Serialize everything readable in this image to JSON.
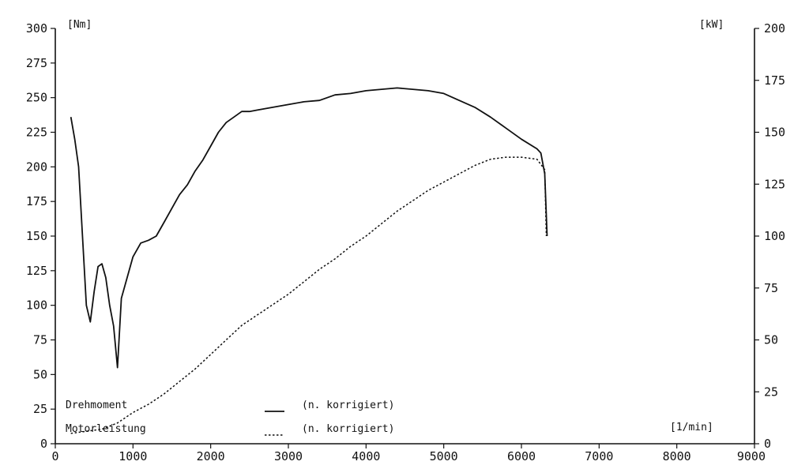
{
  "chart_data": {
    "type": "line",
    "x_axis": {
      "unit_label": "[1/min]",
      "range": [
        0,
        9000
      ],
      "ticks": [
        0,
        1000,
        2000,
        3000,
        4000,
        5000,
        6000,
        7000,
        8000,
        9000
      ]
    },
    "y_left": {
      "unit_label": "[Nm]",
      "range": [
        0,
        300
      ],
      "ticks": [
        0,
        25,
        50,
        75,
        100,
        125,
        150,
        175,
        200,
        225,
        250,
        275,
        300
      ]
    },
    "y_right": {
      "unit_label": "[kW]",
      "range": [
        0,
        200
      ],
      "ticks": [
        0,
        25,
        50,
        75,
        100,
        125,
        150,
        175,
        200
      ]
    },
    "grid": false,
    "legend_position": "bottom-left",
    "series": [
      {
        "name": "Drehmoment",
        "note": "(n. korrigiert)",
        "axis": "left",
        "style": "solid",
        "x": [
          200,
          250,
          300,
          350,
          400,
          450,
          500,
          550,
          600,
          650,
          700,
          750,
          800,
          850,
          900,
          1000,
          1100,
          1200,
          1300,
          1400,
          1500,
          1600,
          1700,
          1800,
          1900,
          2000,
          2100,
          2200,
          2300,
          2400,
          2500,
          2600,
          2800,
          3000,
          3200,
          3400,
          3600,
          3800,
          4000,
          4200,
          4400,
          4600,
          4800,
          5000,
          5200,
          5400,
          5600,
          5800,
          6000,
          6200,
          6250,
          6300,
          6330
        ],
        "y": [
          236,
          220,
          200,
          150,
          100,
          88,
          110,
          128,
          130,
          120,
          100,
          85,
          55,
          105,
          115,
          135,
          145,
          147,
          150,
          160,
          170,
          180,
          187,
          197,
          205,
          215,
          225,
          232,
          236,
          240,
          240,
          241,
          243,
          245,
          247,
          248,
          252,
          253,
          255,
          256,
          257,
          256,
          255,
          253,
          248,
          243,
          236,
          228,
          220,
          213,
          210,
          195,
          150
        ]
      },
      {
        "name": "Motorleistung",
        "note": "(n. korrigiert)",
        "axis": "right",
        "style": "dashed",
        "x": [
          200,
          400,
          600,
          800,
          1000,
          1200,
          1400,
          1600,
          1800,
          2000,
          2200,
          2400,
          2600,
          2800,
          3000,
          3200,
          3400,
          3600,
          3800,
          4000,
          4200,
          4400,
          4600,
          4800,
          5000,
          5200,
          5400,
          5600,
          5800,
          6000,
          6200,
          6300,
          6320
        ],
        "y": [
          5,
          6,
          7,
          10,
          15,
          19,
          24,
          30,
          36,
          43,
          50,
          57,
          62,
          67,
          72,
          78,
          84,
          89,
          95,
          100,
          106,
          112,
          117,
          122,
          126,
          130,
          134,
          137,
          138,
          138,
          137,
          132,
          100
        ]
      }
    ]
  }
}
